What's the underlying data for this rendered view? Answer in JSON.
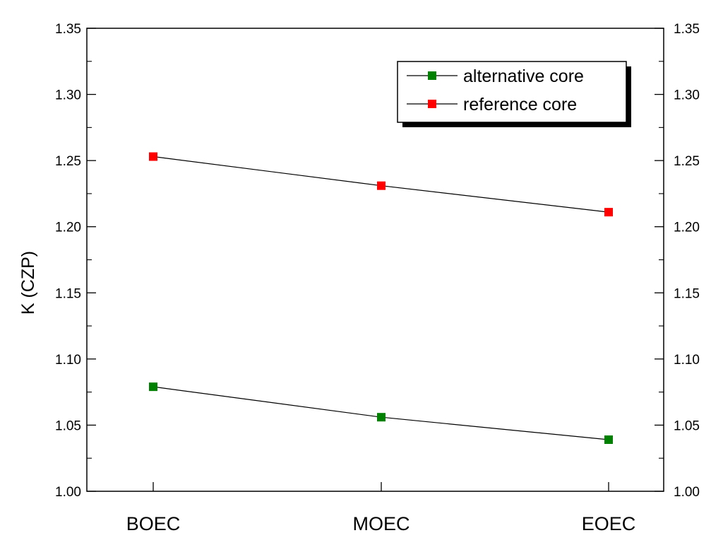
{
  "chart_data": {
    "type": "line",
    "title": "",
    "xlabel": "",
    "ylabel": "K (CZP)",
    "categories": [
      "BOEC",
      "MOEC",
      "EOEC"
    ],
    "ylim": [
      1.0,
      1.35
    ],
    "yticks": [
      "1.00",
      "1.05",
      "1.10",
      "1.15",
      "1.20",
      "1.25",
      "1.30",
      "1.35"
    ],
    "ytick_values": [
      1.0,
      1.05,
      1.1,
      1.15,
      1.2,
      1.25,
      1.3,
      1.35
    ],
    "grid": false,
    "legend_position": "top-right",
    "series": [
      {
        "name": "alternative core",
        "color": "#008000",
        "values": [
          1.079,
          1.056,
          1.039
        ]
      },
      {
        "name": "reference core",
        "color": "#ff0000",
        "values": [
          1.253,
          1.231,
          1.211
        ]
      }
    ]
  }
}
